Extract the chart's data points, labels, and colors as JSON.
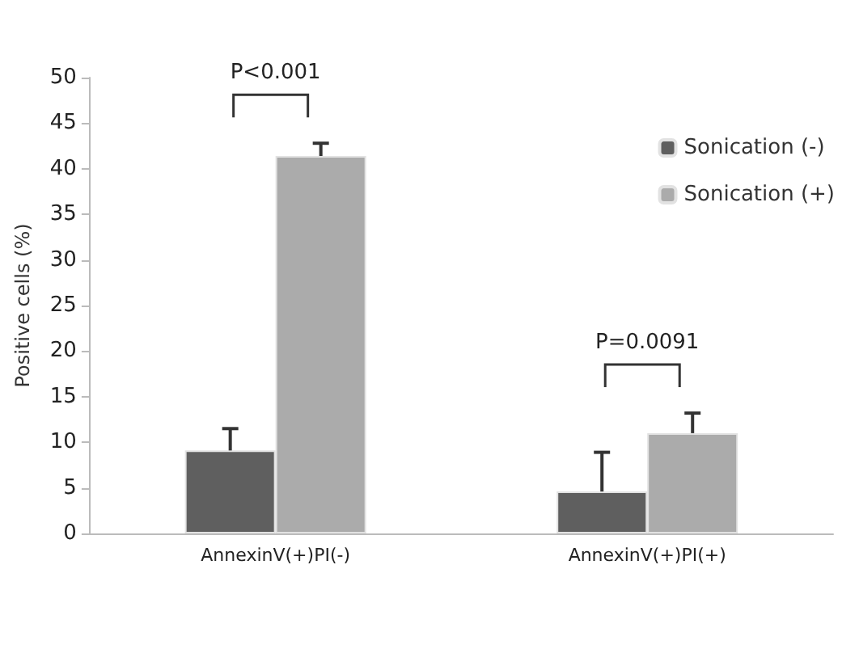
{
  "chart_data": {
    "type": "bar",
    "ylabel": "Positive cells (%)",
    "categories": [
      "AnnexinV(+)PI(-)",
      "AnnexinV(+)PI(+)"
    ],
    "series": [
      {
        "name": "Sonication (-)",
        "color": "#5f5f5f",
        "values": [
          9.1,
          4.6
        ],
        "errors": [
          [
            9.1,
            11.5
          ],
          [
            4.6,
            8.9
          ]
        ]
      },
      {
        "name": "Sonication (+)",
        "color": "#ababab",
        "values": [
          41.4,
          11
        ],
        "errors": [
          [
            41.4,
            42.8
          ],
          [
            11,
            13.2
          ]
        ]
      }
    ],
    "ylim": [
      0,
      50
    ],
    "yticks": [
      0,
      5,
      10,
      15,
      20,
      25,
      30,
      35,
      40,
      45,
      50
    ],
    "grid": false,
    "legend": "top right",
    "annotations": [
      "P<0.001",
      "P=0.0091"
    ]
  }
}
